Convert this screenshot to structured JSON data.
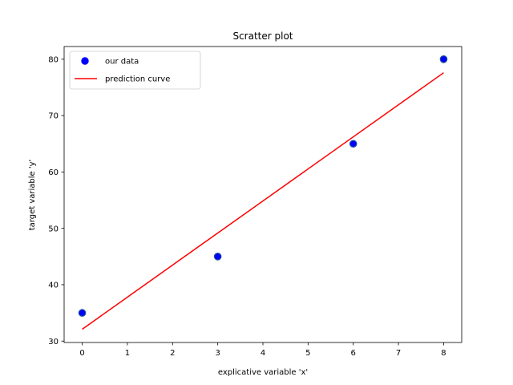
{
  "chart_data": {
    "type": "scatter",
    "title": "Scratter plot",
    "xlabel": "explicative variable 'x'",
    "ylabel": "target variable 'y'",
    "xlim": [
      -0.4,
      8.4
    ],
    "ylim": [
      29.75,
      82.25
    ],
    "xticks": [
      0,
      1,
      2,
      3,
      4,
      5,
      6,
      7,
      8
    ],
    "yticks": [
      30,
      40,
      50,
      60,
      70,
      80
    ],
    "grid": false,
    "legend_position": "top-left",
    "series": [
      {
        "name": "our data",
        "kind": "scatter",
        "color": "#0000ff",
        "edge_color": "#1f4e9a",
        "x": [
          0,
          3,
          6,
          8
        ],
        "y": [
          35,
          45,
          65,
          80
        ]
      },
      {
        "name": "prediction curve",
        "kind": "line",
        "color": "#ff0000",
        "x": [
          0,
          8
        ],
        "y": [
          32.1,
          77.6
        ]
      }
    ]
  }
}
